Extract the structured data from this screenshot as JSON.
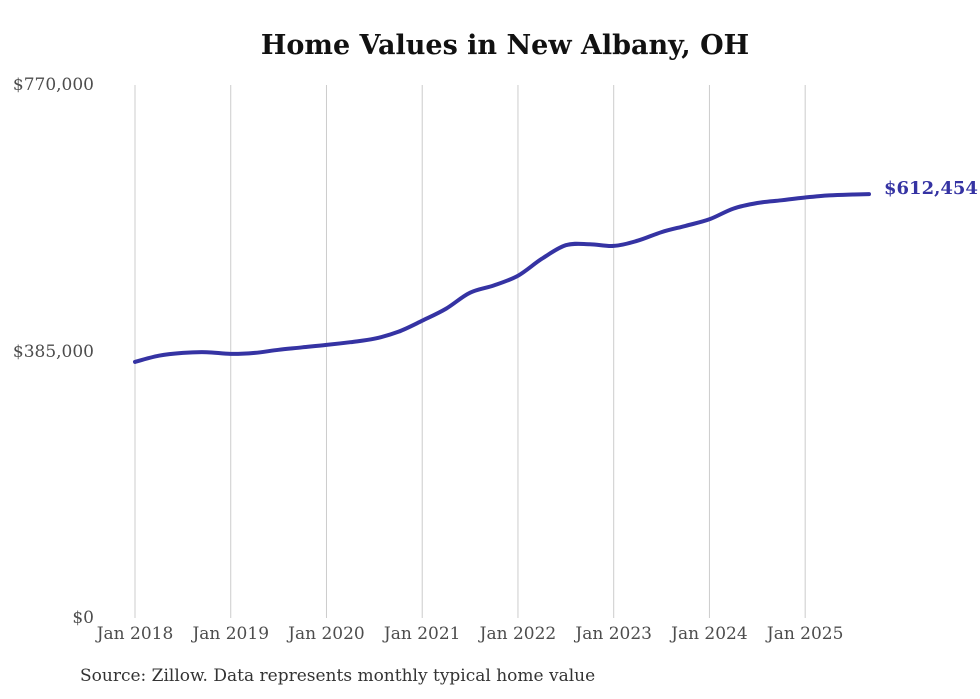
{
  "chart": {
    "title": "Home Values in New Albany, OH",
    "source_note": "Source: Zillow. Data represents monthly typical home value",
    "colors": {
      "background": "#ffffff",
      "line": "#3533a3",
      "grid": "#cccccc",
      "title_text": "#111111",
      "tick_text": "#4d4d4d",
      "source_text": "#333333",
      "end_label_text": "#3533a3"
    }
  },
  "chart_data": {
    "type": "line",
    "title": "Home Values in New Albany, OH",
    "xlabel": "",
    "ylabel": "",
    "ylim": [
      0,
      770000
    ],
    "grid": "vertical-gridlines-only",
    "legend_position": "none",
    "y_ticks": [
      {
        "label": "$0",
        "value": 0
      },
      {
        "label": "$385,000",
        "value": 385000
      },
      {
        "label": "$770,000",
        "value": 770000
      }
    ],
    "x_ticks": [
      {
        "label": "Jan 2018",
        "month": 0
      },
      {
        "label": "Jan 2019",
        "month": 12
      },
      {
        "label": "Jan 2020",
        "month": 24
      },
      {
        "label": "Jan 2021",
        "month": 36
      },
      {
        "label": "Jan 2022",
        "month": 48
      },
      {
        "label": "Jan 2023",
        "month": 60
      },
      {
        "label": "Jan 2024",
        "month": 72
      },
      {
        "label": "Jan 2025",
        "month": 84
      }
    ],
    "series": [
      {
        "name": "Monthly typical home value",
        "points": [
          {
            "date": "2018-01",
            "value": 370000
          },
          {
            "date": "2018-04",
            "value": 379000
          },
          {
            "date": "2018-07",
            "value": 383000
          },
          {
            "date": "2018-10",
            "value": 384000
          },
          {
            "date": "2019-01",
            "value": 381500
          },
          {
            "date": "2019-04",
            "value": 383000
          },
          {
            "date": "2019-07",
            "value": 387500
          },
          {
            "date": "2019-10",
            "value": 391000
          },
          {
            "date": "2020-01",
            "value": 394500
          },
          {
            "date": "2020-04",
            "value": 398500
          },
          {
            "date": "2020-07",
            "value": 403500
          },
          {
            "date": "2020-10",
            "value": 413500
          },
          {
            "date": "2021-01",
            "value": 429500
          },
          {
            "date": "2021-04",
            "value": 447000
          },
          {
            "date": "2021-07",
            "value": 470000
          },
          {
            "date": "2021-10",
            "value": 480500
          },
          {
            "date": "2022-01",
            "value": 494500
          },
          {
            "date": "2022-04",
            "value": 519000
          },
          {
            "date": "2022-07",
            "value": 538500
          },
          {
            "date": "2022-10",
            "value": 540000
          },
          {
            "date": "2023-01",
            "value": 537500
          },
          {
            "date": "2023-04",
            "value": 545000
          },
          {
            "date": "2023-07",
            "value": 557500
          },
          {
            "date": "2023-10",
            "value": 566500
          },
          {
            "date": "2024-01",
            "value": 576000
          },
          {
            "date": "2024-04",
            "value": 591500
          },
          {
            "date": "2024-07",
            "value": 599500
          },
          {
            "date": "2024-10",
            "value": 603500
          },
          {
            "date": "2025-01",
            "value": 607500
          },
          {
            "date": "2025-04",
            "value": 610500
          },
          {
            "date": "2025-07",
            "value": 611800
          },
          {
            "date": "2025-09",
            "value": 612454
          }
        ]
      }
    ],
    "end_annotation": {
      "text": "$612,454",
      "value": 612454,
      "date": "2025-09"
    }
  }
}
